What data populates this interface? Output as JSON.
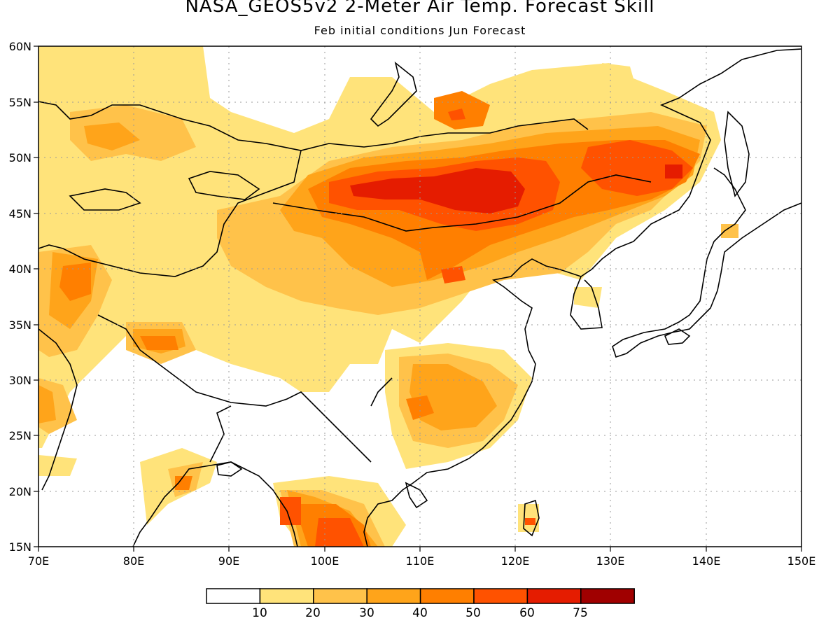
{
  "title": "NASA_GEOS5v2 2-Meter Air Temp. Forecast Skill",
  "subtitle": "Feb initial conditions  Jun Forecast",
  "map": {
    "lon_range": [
      70,
      150
    ],
    "lat_range": [
      15,
      60
    ],
    "lon_ticks": [
      "70E",
      "80E",
      "90E",
      "100E",
      "110E",
      "120E",
      "130E",
      "140E",
      "150E"
    ],
    "lat_ticks": [
      "15N",
      "20N",
      "25N",
      "30N",
      "35N",
      "40N",
      "45N",
      "50N",
      "55N",
      "60N"
    ],
    "grid": true
  },
  "legend": {
    "thresholds": [
      "10",
      "20",
      "30",
      "40",
      "50",
      "60",
      "75"
    ],
    "colors": [
      "#ffffff",
      "#ffe37a",
      "#ffc24a",
      "#ffa41a",
      "#ff7f00",
      "#ff5200",
      "#e51c00",
      "#a00000"
    ]
  }
}
